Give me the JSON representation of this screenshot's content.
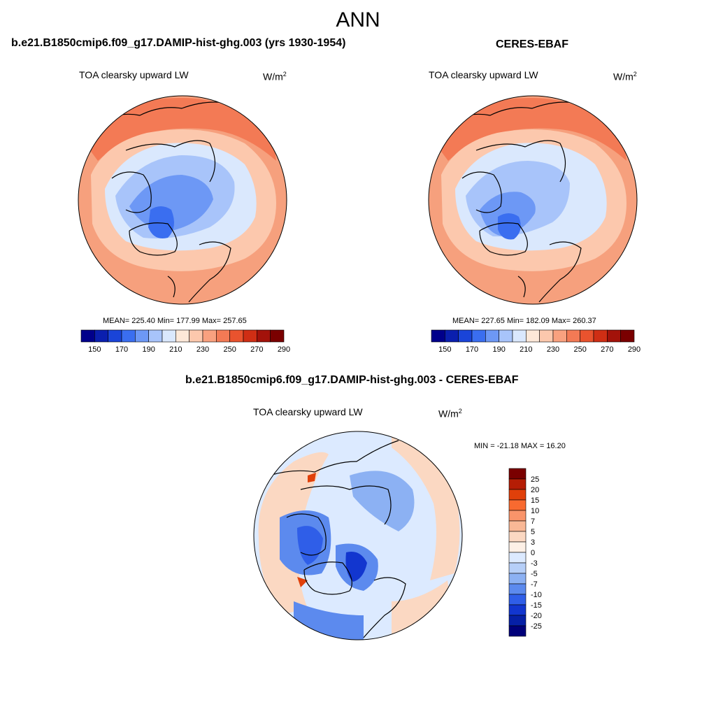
{
  "figure": {
    "title": "ANN"
  },
  "panels": [
    {
      "id": "model",
      "title": "b.e21.B1850cmip6.f09_g17.DAMIP-hist-ghg.003 (yrs 1930-1954)",
      "variable": "TOA clearsky upward LW",
      "units_base": "W/m",
      "units_exp": "2",
      "stats_text": "MEAN= 225.40  Min= 177.99  Max= 257.65",
      "stats": {
        "mean": 225.4,
        "min": 177.99,
        "max": 257.65
      },
      "colorbar": {
        "labels": [
          "150",
          "170",
          "190",
          "210",
          "230",
          "250",
          "270",
          "290"
        ],
        "colors": [
          "#00008b",
          "#0a1fae",
          "#1a44d8",
          "#3a6ef0",
          "#6d98f5",
          "#a8c4fa",
          "#dae8fd",
          "#fde8d8",
          "#fcc8ad",
          "#f9a17f",
          "#f37a55",
          "#e9532e",
          "#cf2e14",
          "#a3120a",
          "#7a0000"
        ]
      }
    },
    {
      "id": "obs",
      "title": "CERES-EBAF",
      "variable": "TOA clearsky upward LW",
      "units_base": "W/m",
      "units_exp": "2",
      "stats_text": "MEAN= 227.65  Min= 182.09  Max= 260.37",
      "stats": {
        "mean": 227.65,
        "min": 182.09,
        "max": 260.37
      },
      "colorbar": {
        "labels": [
          "150",
          "170",
          "190",
          "210",
          "230",
          "250",
          "270",
          "290"
        ],
        "colors": [
          "#00008b",
          "#0a1fae",
          "#1a44d8",
          "#3a6ef0",
          "#6d98f5",
          "#a8c4fa",
          "#dae8fd",
          "#fde8d8",
          "#fcc8ad",
          "#f9a17f",
          "#f37a55",
          "#e9532e",
          "#cf2e14",
          "#a3120a",
          "#7a0000"
        ]
      }
    },
    {
      "id": "diff",
      "title": "b.e21.B1850cmip6.f09_g17.DAMIP-hist-ghg.003 - CERES-EBAF",
      "variable": "TOA clearsky upward LW",
      "units_base": "W/m",
      "units_exp": "2",
      "stats_text": "MIN = -21.18 MAX =  16.20",
      "stats": {
        "min": -21.18,
        "max": 16.2
      },
      "colorbar": {
        "labels": [
          "25",
          "20",
          "15",
          "10",
          "7",
          "5",
          "3",
          "0",
          "-3",
          "-5",
          "-7",
          "-10",
          "-15",
          "-20",
          "-25"
        ],
        "colors": [
          "#7a0000",
          "#b51d05",
          "#e0400a",
          "#f86a30",
          "#f9946a",
          "#f9b896",
          "#fbd8c2",
          "#fdf0e6",
          "#dceaff",
          "#b6cff8",
          "#8cb1f3",
          "#5c8aee",
          "#2f5ee8",
          "#1236cf",
          "#0620a6",
          "#00007a"
        ]
      }
    }
  ],
  "chart_data": [
    {
      "type": "map",
      "projection": "north polar stereographic",
      "title": "b.e21.B1850cmip6.f09_g17.DAMIP-hist-ghg.003 (yrs 1930-1954)",
      "variable": "TOA clearsky upward LW",
      "units": "W/m2",
      "mean": 225.4,
      "min": 177.99,
      "max": 257.65,
      "contour_levels": [
        150,
        160,
        170,
        180,
        190,
        200,
        210,
        220,
        230,
        240,
        250,
        260,
        270,
        280,
        290
      ]
    },
    {
      "type": "map",
      "projection": "north polar stereographic",
      "title": "CERES-EBAF",
      "variable": "TOA clearsky upward LW",
      "units": "W/m2",
      "mean": 227.65,
      "min": 182.09,
      "max": 260.37,
      "contour_levels": [
        150,
        160,
        170,
        180,
        190,
        200,
        210,
        220,
        230,
        240,
        250,
        260,
        270,
        280,
        290
      ]
    },
    {
      "type": "map",
      "projection": "north polar stereographic",
      "title": "b.e21.B1850cmip6.f09_g17.DAMIP-hist-ghg.003 - CERES-EBAF",
      "variable": "TOA clearsky upward LW",
      "units": "W/m2",
      "min": -21.18,
      "max": 16.2,
      "contour_levels": [
        -25,
        -20,
        -15,
        -10,
        -7,
        -5,
        -3,
        0,
        3,
        5,
        7,
        10,
        15,
        20,
        25
      ]
    }
  ]
}
